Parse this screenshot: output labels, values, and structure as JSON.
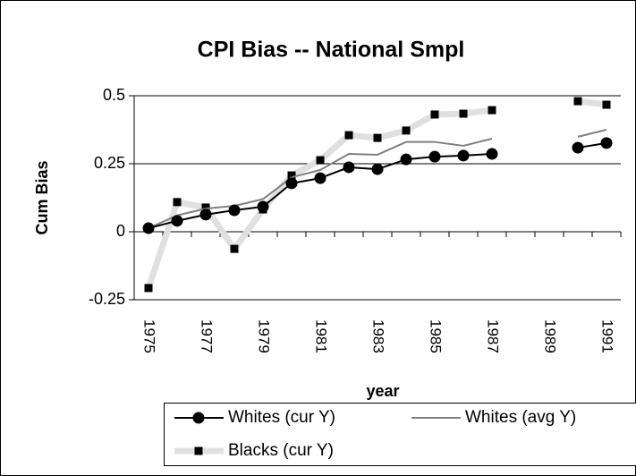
{
  "chart_data": {
    "type": "line",
    "title": "CPI Bias -- National Smpl",
    "x_label": "year",
    "y_label": "Cum Bias",
    "categories": [
      "1975",
      null,
      "1977",
      null,
      "1979",
      null,
      "1981",
      null,
      "1983",
      null,
      "1985",
      null,
      "1987",
      null,
      "1989",
      null,
      "1991"
    ],
    "series": [
      {
        "name": "Whites (cur Y)",
        "color": "#000000",
        "marker": "circle",
        "width": 2,
        "values": [
          0.013,
          0.04,
          0.063,
          0.079,
          0.092,
          0.178,
          0.197,
          0.237,
          0.23,
          0.266,
          0.276,
          0.28,
          0.286,
          null,
          null,
          0.309,
          0.326
        ]
      },
      {
        "name": "Whites (avg Y)",
        "color": "#808080",
        "marker": "none",
        "width": 2,
        "values": [
          0.013,
          0.06,
          0.085,
          0.095,
          0.12,
          0.2,
          0.227,
          0.286,
          0.283,
          0.33,
          0.33,
          0.316,
          0.342,
          null,
          null,
          0.349,
          0.375
        ]
      },
      {
        "name": "Blacks (cur Y)",
        "color": "#e0e0e0",
        "marker": "square",
        "width": 7,
        "values": [
          -0.207,
          0.109,
          0.089,
          -0.063,
          0.082,
          0.207,
          0.263,
          0.355,
          0.345,
          0.372,
          0.431,
          0.434,
          0.447,
          null,
          null,
          0.48,
          0.467
        ]
      }
    ],
    "ylim": [
      -0.25,
      0.5
    ],
    "yticks": [
      0.5,
      0.25,
      0,
      -0.25
    ],
    "grid": true,
    "legend": "bottom"
  }
}
